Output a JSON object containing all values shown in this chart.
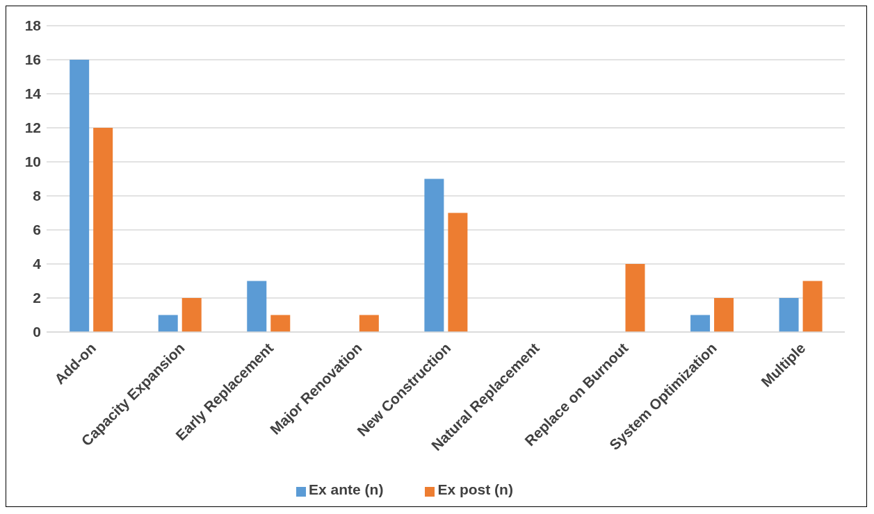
{
  "chart_data": {
    "type": "bar",
    "categories": [
      "Add-on",
      "Capacity Expansion",
      "Early Replacement",
      "Major Renovation",
      "New Construction",
      "Natural Replacement",
      "Replace on Burnout",
      "System Optimization",
      "Multiple"
    ],
    "series": [
      {
        "name": "Ex ante (n)",
        "color": "#5b9bd5",
        "values": [
          16,
          1,
          3,
          0,
          9,
          0,
          0,
          1,
          2
        ]
      },
      {
        "name": "Ex post (n)",
        "color": "#ed7d31",
        "values": [
          12,
          2,
          1,
          1,
          7,
          0,
          4,
          2,
          3
        ]
      }
    ],
    "ylim": [
      0,
      18
    ],
    "yticks": [
      0,
      2,
      4,
      6,
      8,
      10,
      12,
      14,
      16,
      18
    ],
    "grid": "y",
    "legend": "bottom"
  }
}
